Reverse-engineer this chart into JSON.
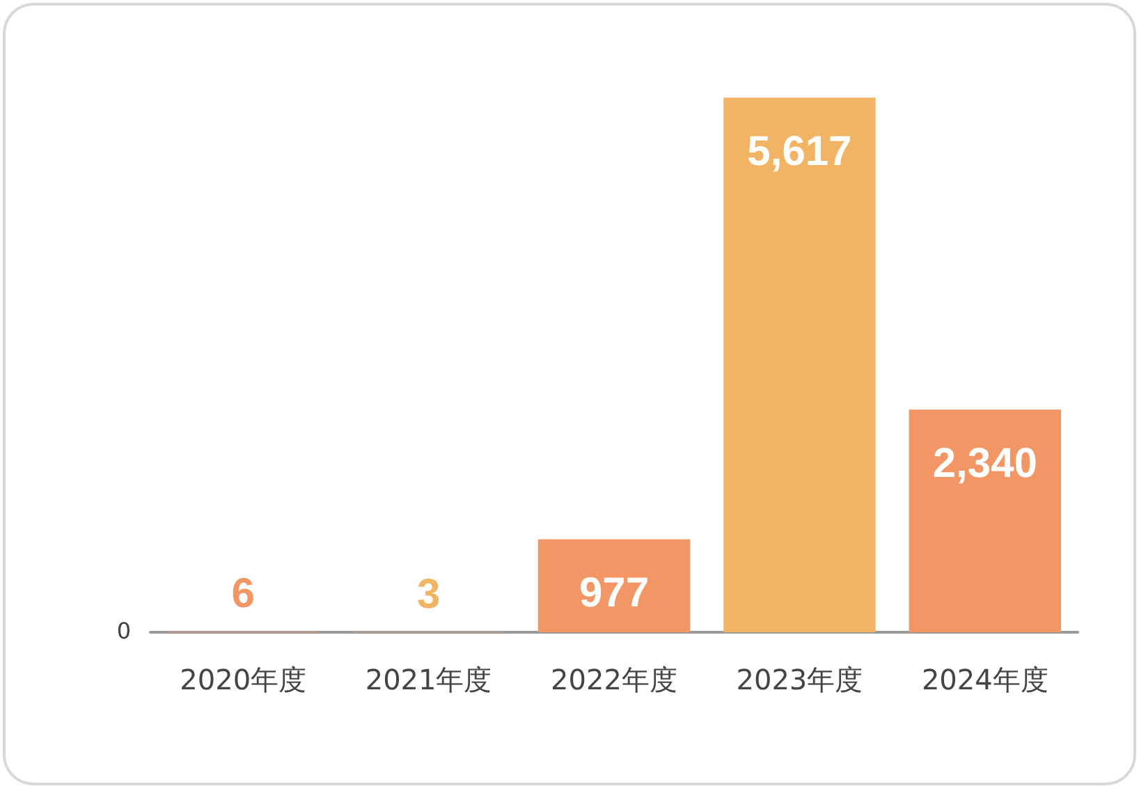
{
  "chart_data": {
    "type": "bar",
    "categories": [
      "2020年度",
      "2021年度",
      "2022年度",
      "2023年度",
      "2024年度"
    ],
    "values": [
      6,
      3,
      977,
      5617,
      2340
    ],
    "value_labels": [
      "6",
      "3",
      "977",
      "5,617",
      "2,340"
    ],
    "colors": [
      "#f19664",
      "#f1b464",
      "#f19664",
      "#f1b464",
      "#f19664"
    ],
    "annotations": [
      "0"
    ],
    "tick_labels": "x",
    "grid": false
  }
}
